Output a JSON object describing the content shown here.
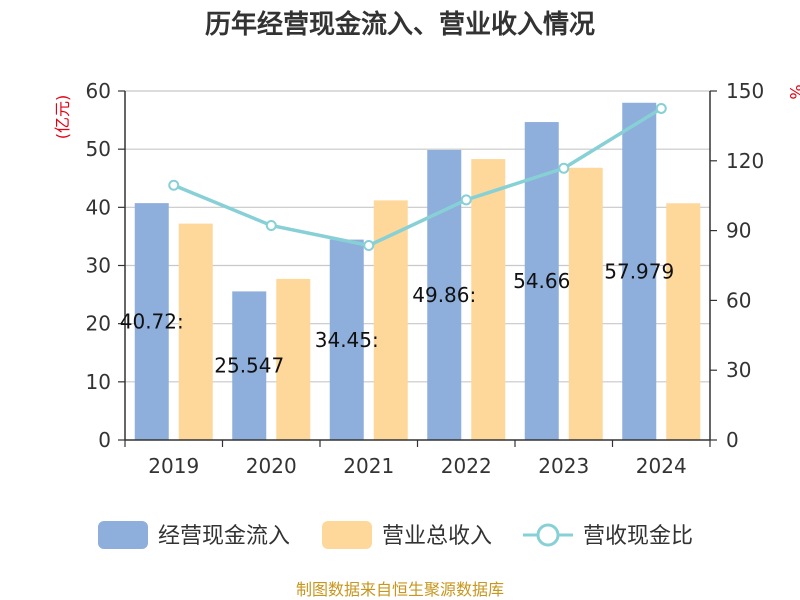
{
  "chart_data": {
    "type": "bar",
    "title": "历年经营现金流入、营业收入情况",
    "categories": [
      "2019",
      "2020",
      "2021",
      "2022",
      "2023",
      "2024"
    ],
    "series": [
      {
        "name": "经营现金流入",
        "kind": "bar",
        "axis": "left",
        "color": "#8eaedb",
        "values": [
          40.722,
          25.547,
          34.453,
          49.863,
          54.66,
          57.979
        ],
        "labels": [
          "40.72:",
          "25.547",
          "34.45:",
          "49.86:",
          "54.66",
          "57.979"
        ]
      },
      {
        "name": "营业总收入",
        "kind": "bar",
        "axis": "left",
        "color": "#fdd89a",
        "values": [
          37.2,
          27.7,
          41.2,
          48.3,
          46.8,
          40.7
        ]
      },
      {
        "name": "营收现金比",
        "kind": "line",
        "axis": "right",
        "color": "#86d0d6",
        "values": [
          109.5,
          92.2,
          83.6,
          103.2,
          116.8,
          142.5
        ]
      }
    ],
    "y_left": {
      "label": "(亿元)",
      "ylim": [
        0,
        60
      ],
      "ticks": [
        "0",
        "10",
        "20",
        "30",
        "40",
        "50",
        "60"
      ]
    },
    "y_right": {
      "label": "%",
      "ylim": [
        0,
        150
      ],
      "ticks": [
        "0",
        "30",
        "60",
        "90",
        "120",
        "150"
      ]
    },
    "grid": true,
    "legend": "bottom",
    "source": "制图数据来自恒生聚源数据库"
  }
}
